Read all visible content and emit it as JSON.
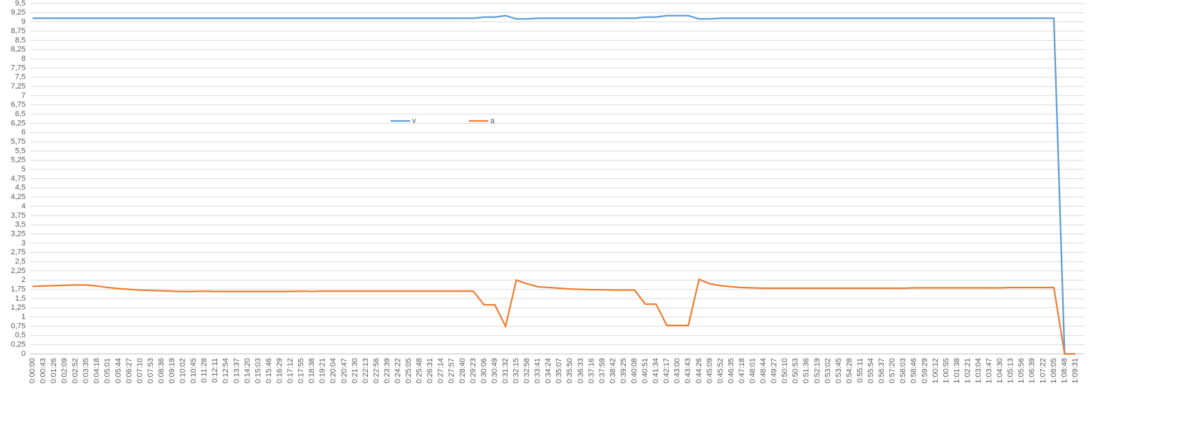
{
  "chart_data": {
    "type": "line",
    "categories": [
      "0:00:00",
      "0:00:43",
      "0:01:26",
      "0:02:09",
      "0:02:52",
      "0:03:35",
      "0:04:18",
      "0:05:01",
      "0:05:44",
      "0:06:27",
      "0:07:10",
      "0:07:53",
      "0:08:36",
      "0:09:19",
      "0:10:02",
      "0:10:45",
      "0:11:28",
      "0:12:11",
      "0:12:54",
      "0:13:37",
      "0:14:20",
      "0:15:03",
      "0:15:46",
      "0:16:29",
      "0:17:12",
      "0:17:55",
      "0:18:38",
      "0:19:21",
      "0:20:04",
      "0:20:47",
      "0:21:30",
      "0:22:13",
      "0:22:56",
      "0:23:39",
      "0:24:22",
      "0:25:05",
      "0:25:48",
      "0:26:31",
      "0:27:14",
      "0:27:57",
      "0:28:40",
      "0:29:23",
      "0:30:06",
      "0:30:49",
      "0:31:32",
      "0:32:15",
      "0:32:58",
      "0:33:41",
      "0:34:24",
      "0:35:07",
      "0:35:50",
      "0:36:33",
      "0:37:16",
      "0:37:59",
      "0:38:42",
      "0:39:25",
      "0:40:08",
      "0:40:51",
      "0:41:34",
      "0:42:17",
      "0:43:00",
      "0:43:43",
      "0:44:26",
      "0:45:09",
      "0:45:52",
      "0:46:35",
      "0:47:18",
      "0:48:01",
      "0:48:44",
      "0:49:27",
      "0:50:10",
      "0:50:53",
      "0:51:36",
      "0:52:19",
      "0:53:02",
      "0:53:45",
      "0:54:28",
      "0:55:11",
      "0:55:54",
      "0:56:37",
      "0:57:20",
      "0:58:03",
      "0:58:46",
      "0:59:29",
      "1:00:12",
      "1:00:55",
      "1:01:38",
      "1:02:21",
      "1:03:04",
      "1:03:47",
      "1:04:30",
      "1:05:13",
      "1:05:56",
      "1:06:39",
      "1:07:22",
      "1:08:05",
      "1:08:48",
      "1:09:31"
    ],
    "series": [
      {
        "name": "v",
        "color": "#5b9bd5",
        "values": [
          9.1,
          9.1,
          9.1,
          9.1,
          9.1,
          9.1,
          9.1,
          9.1,
          9.1,
          9.1,
          9.1,
          9.1,
          9.1,
          9.1,
          9.1,
          9.1,
          9.1,
          9.1,
          9.1,
          9.1,
          9.1,
          9.1,
          9.1,
          9.1,
          9.1,
          9.1,
          9.1,
          9.1,
          9.1,
          9.1,
          9.1,
          9.1,
          9.1,
          9.1,
          9.1,
          9.1,
          9.1,
          9.1,
          9.1,
          9.1,
          9.1,
          9.1,
          9.13,
          9.13,
          9.17,
          9.08,
          9.08,
          9.1,
          9.1,
          9.1,
          9.1,
          9.1,
          9.1,
          9.1,
          9.1,
          9.1,
          9.1,
          9.13,
          9.13,
          9.17,
          9.17,
          9.17,
          9.08,
          9.08,
          9.1,
          9.1,
          9.1,
          9.1,
          9.1,
          9.1,
          9.1,
          9.1,
          9.1,
          9.1,
          9.1,
          9.1,
          9.1,
          9.1,
          9.1,
          9.1,
          9.1,
          9.1,
          9.1,
          9.1,
          9.1,
          9.1,
          9.1,
          9.1,
          9.1,
          9.1,
          9.1,
          9.1,
          9.1,
          9.1,
          9.1,
          9.1,
          0,
          0
        ]
      },
      {
        "name": "a",
        "color": "#ed7d31",
        "values": [
          1.83,
          1.84,
          1.85,
          1.86,
          1.87,
          1.87,
          1.84,
          1.8,
          1.77,
          1.75,
          1.73,
          1.72,
          1.71,
          1.7,
          1.69,
          1.69,
          1.7,
          1.69,
          1.69,
          1.69,
          1.69,
          1.69,
          1.69,
          1.69,
          1.69,
          1.7,
          1.69,
          1.7,
          1.7,
          1.7,
          1.7,
          1.7,
          1.7,
          1.7,
          1.7,
          1.7,
          1.7,
          1.7,
          1.7,
          1.7,
          1.7,
          1.7,
          1.33,
          1.33,
          0.75,
          2.0,
          1.9,
          1.82,
          1.8,
          1.78,
          1.76,
          1.75,
          1.74,
          1.74,
          1.73,
          1.73,
          1.73,
          1.35,
          1.35,
          0.77,
          0.77,
          0.77,
          2.02,
          1.9,
          1.85,
          1.82,
          1.8,
          1.79,
          1.78,
          1.78,
          1.78,
          1.78,
          1.78,
          1.78,
          1.78,
          1.78,
          1.78,
          1.78,
          1.78,
          1.78,
          1.78,
          1.78,
          1.79,
          1.79,
          1.79,
          1.79,
          1.79,
          1.79,
          1.79,
          1.79,
          1.79,
          1.8,
          1.8,
          1.8,
          1.8,
          1.8,
          0,
          0
        ]
      }
    ],
    "ylim": [
      0,
      9.5
    ],
    "yticks": [
      0,
      {
        "value": 0.25,
        "label": "0,25"
      },
      {
        "value": 0.5,
        "label": "0,5"
      },
      {
        "value": 0.75,
        "label": "0,75"
      },
      1,
      {
        "value": 1.25,
        "label": "1,25"
      },
      {
        "value": 1.5,
        "label": "1,5"
      },
      {
        "value": 1.75,
        "label": "1,75"
      },
      2,
      {
        "value": 2.25,
        "label": "2,25"
      },
      {
        "value": 2.5,
        "label": "2,5"
      },
      {
        "value": 2.75,
        "label": "2,75"
      },
      3,
      {
        "value": 3.25,
        "label": "3,25"
      },
      {
        "value": 3.5,
        "label": "3,5"
      },
      {
        "value": 3.75,
        "label": "3,75"
      },
      4,
      {
        "value": 4.25,
        "label": "4,25"
      },
      {
        "value": 4.5,
        "label": "4,5"
      },
      {
        "value": 4.75,
        "label": "4,75"
      },
      5,
      {
        "value": 5.25,
        "label": "5,25"
      },
      {
        "value": 5.5,
        "label": "5,5"
      },
      {
        "value": 5.75,
        "label": "5,75"
      },
      6,
      {
        "value": 6.25,
        "label": "6,25"
      },
      {
        "value": 6.5,
        "label": "6,5"
      },
      {
        "value": 6.75,
        "label": "6,75"
      },
      7,
      {
        "value": 7.25,
        "label": "7,25"
      },
      {
        "value": 7.5,
        "label": "7,5"
      },
      {
        "value": 7.75,
        "label": "7,75"
      },
      8,
      {
        "value": 8.25,
        "label": "8,25"
      },
      {
        "value": 8.5,
        "label": "8,5"
      },
      {
        "value": 8.75,
        "label": "8,75"
      },
      9,
      {
        "value": 9.25,
        "label": "9,25"
      },
      {
        "value": 9.5,
        "label": "9,5"
      }
    ],
    "grid": true,
    "legend": "center"
  }
}
